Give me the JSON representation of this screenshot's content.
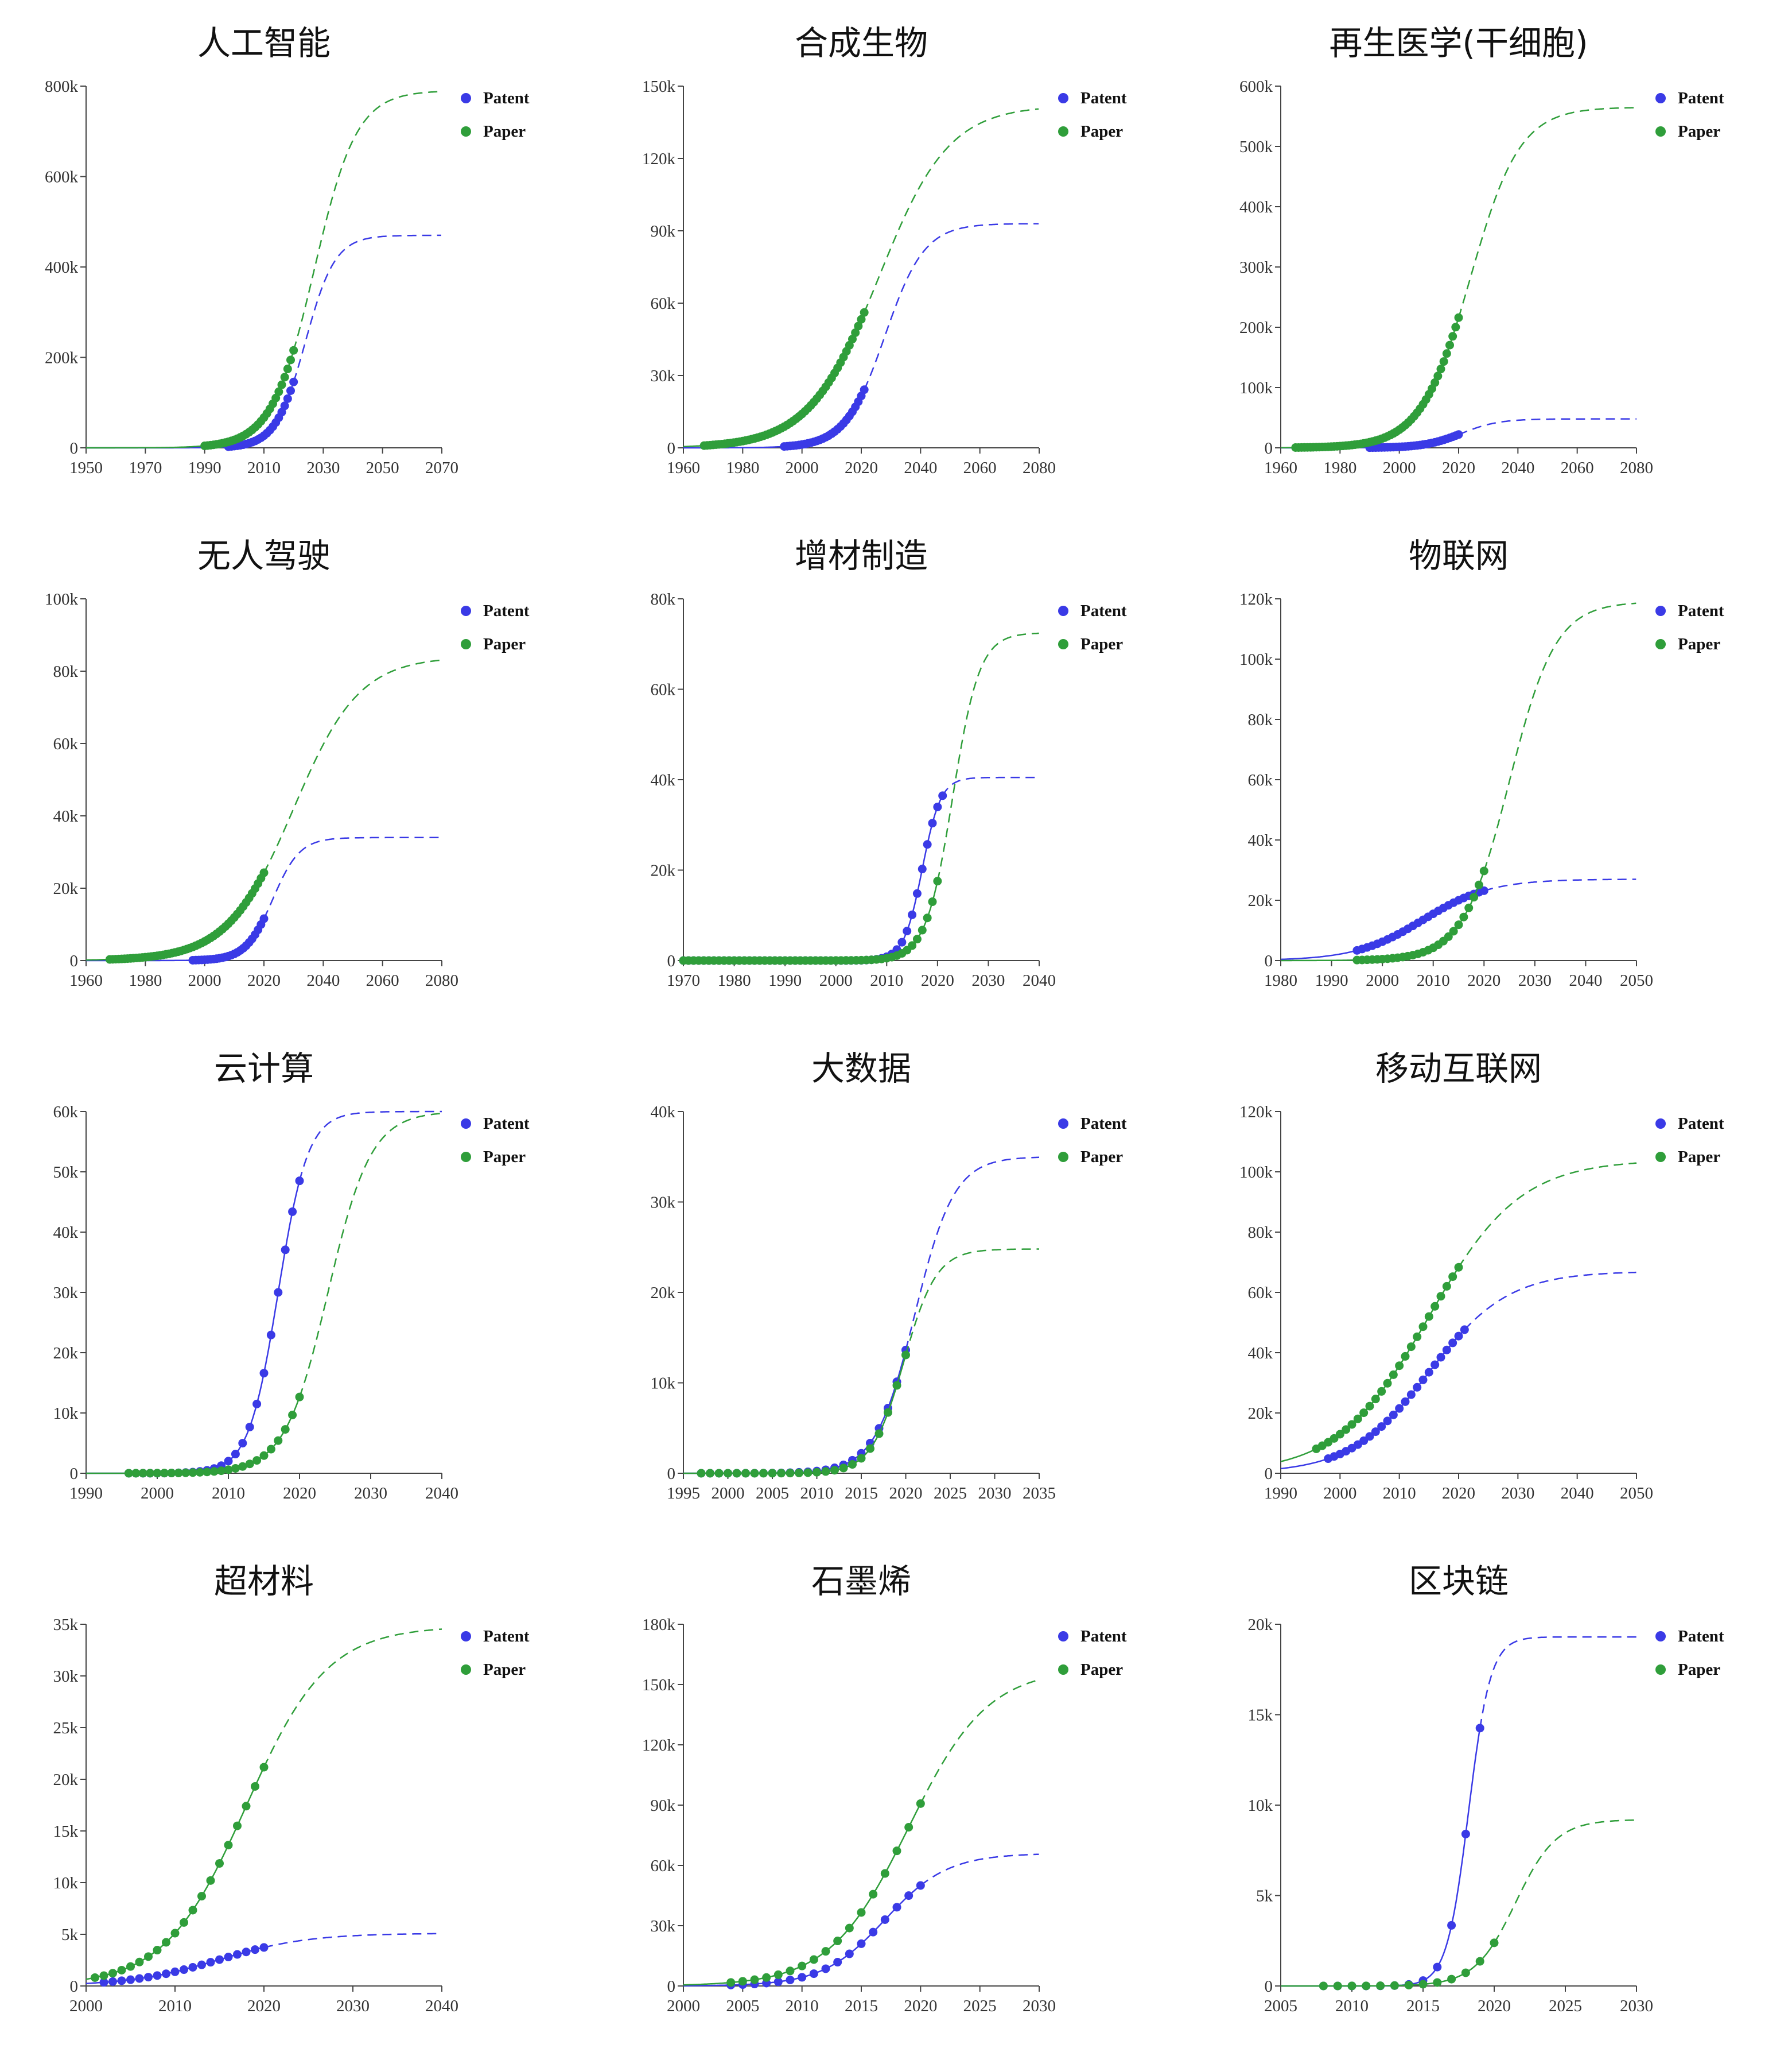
{
  "colors": {
    "patent": "#3a3ae6",
    "paper": "#2f9e3a"
  },
  "chart_data": [
    {
      "title": "人工智能",
      "type": "line",
      "xlim": [
        1950,
        2070
      ],
      "xticks": [
        1950,
        1970,
        1990,
        2010,
        2030,
        2050,
        2070
      ],
      "ylim": [
        0,
        800000
      ],
      "yticks": [
        0,
        200000,
        400000,
        600000,
        800000
      ],
      "ytick_labels": [
        "0",
        "200k",
        "400k",
        "600k",
        "800k"
      ],
      "series": [
        {
          "name": "Patent",
          "color": "#3a3ae6",
          "L": 470000,
          "k": 0.2,
          "x0": 2024,
          "obs_start": 1998,
          "obs_end": 2020
        },
        {
          "name": "Paper",
          "color": "#2f9e3a",
          "L": 790000,
          "k": 0.14,
          "x0": 2027,
          "obs_start": 1990,
          "obs_end": 2020
        }
      ]
    },
    {
      "title": "合成生物",
      "type": "line",
      "xlim": [
        1960,
        2080
      ],
      "xticks": [
        1960,
        1980,
        2000,
        2020,
        2040,
        2060,
        2080
      ],
      "ylim": [
        0,
        150000
      ],
      "yticks": [
        0,
        30000,
        60000,
        90000,
        120000,
        150000
      ],
      "ytick_labels": [
        "0",
        "30k",
        "60k",
        "90k",
        "120k",
        "150k"
      ],
      "series": [
        {
          "name": "Patent",
          "color": "#3a3ae6",
          "L": 93000,
          "k": 0.15,
          "x0": 2028,
          "obs_start": 1994,
          "obs_end": 2021
        },
        {
          "name": "Paper",
          "color": "#2f9e3a",
          "L": 142000,
          "k": 0.085,
          "x0": 2026,
          "obs_start": 1967,
          "obs_end": 2021
        }
      ]
    },
    {
      "title": "再生医学(干细胞)",
      "type": "line",
      "xlim": [
        1960,
        2080
      ],
      "xticks": [
        1960,
        1980,
        2000,
        2020,
        2040,
        2060,
        2080
      ],
      "ylim": [
        0,
        600000
      ],
      "yticks": [
        0,
        100000,
        200000,
        300000,
        400000,
        500000,
        600000
      ],
      "ytick_labels": [
        "0",
        "100k",
        "200k",
        "300k",
        "400k",
        "500k",
        "600k"
      ],
      "series": [
        {
          "name": "Patent",
          "color": "#3a3ae6",
          "L": 48000,
          "k": 0.16,
          "x0": 2021,
          "obs_start": 1990,
          "obs_end": 2020
        },
        {
          "name": "Paper",
          "color": "#2f9e3a",
          "L": 565000,
          "k": 0.12,
          "x0": 2024,
          "obs_start": 1965,
          "obs_end": 2020
        }
      ]
    },
    {
      "title": "无人驾驶",
      "type": "line",
      "xlim": [
        1960,
        2080
      ],
      "xticks": [
        1960,
        1980,
        2000,
        2020,
        2040,
        2060,
        2080
      ],
      "ylim": [
        0,
        100000
      ],
      "yticks": [
        0,
        20000,
        40000,
        60000,
        80000,
        100000
      ],
      "ytick_labels": [
        "0",
        "20k",
        "40k",
        "60k",
        "80k",
        "100k"
      ],
      "series": [
        {
          "name": "Patent",
          "color": "#3a3ae6",
          "L": 34000,
          "k": 0.22,
          "x0": 2023,
          "obs_start": 1996,
          "obs_end": 2020
        },
        {
          "name": "Paper",
          "color": "#2f9e3a",
          "L": 84000,
          "k": 0.09,
          "x0": 2030,
          "obs_start": 1968,
          "obs_end": 2020
        }
      ]
    },
    {
      "title": "增材制造",
      "type": "line",
      "xlim": [
        1970,
        2040
      ],
      "xticks": [
        1970,
        1980,
        1990,
        2000,
        2010,
        2020,
        2030,
        2040
      ],
      "ylim": [
        0,
        80000
      ],
      "yticks": [
        0,
        20000,
        40000,
        60000,
        80000
      ],
      "ytick_labels": [
        "0",
        "20k",
        "40k",
        "60k",
        "80k"
      ],
      "series": [
        {
          "name": "Patent",
          "color": "#3a3ae6",
          "L": 40500,
          "k": 0.55,
          "x0": 2017,
          "obs_start": 1970,
          "obs_end": 2021
        },
        {
          "name": "Paper",
          "color": "#2f9e3a",
          "L": 72500,
          "k": 0.38,
          "x0": 2023,
          "obs_start": 1970,
          "obs_end": 2020
        }
      ]
    },
    {
      "title": "物联网",
      "type": "line",
      "xlim": [
        1980,
        2050
      ],
      "xticks": [
        1980,
        1990,
        2000,
        2010,
        2020,
        2030,
        2040,
        2050
      ],
      "ylim": [
        0,
        120000
      ],
      "yticks": [
        0,
        20000,
        40000,
        60000,
        80000,
        100000,
        120000
      ],
      "ytick_labels": [
        "0",
        "20k",
        "40k",
        "60k",
        "80k",
        "100k",
        "120k"
      ],
      "series": [
        {
          "name": "Patent",
          "color": "#3a3ae6",
          "L": 27000,
          "k": 0.15,
          "x0": 2008,
          "obs_start": 1995,
          "obs_end": 2020
        },
        {
          "name": "Paper",
          "color": "#2f9e3a",
          "L": 119000,
          "k": 0.22,
          "x0": 2025,
          "obs_start": 1995,
          "obs_end": 2020
        }
      ]
    },
    {
      "title": "云计算",
      "type": "line",
      "xlim": [
        1990,
        2040
      ],
      "xticks": [
        1990,
        2000,
        2010,
        2020,
        2030,
        2040
      ],
      "ylim": [
        0,
        60000
      ],
      "yticks": [
        0,
        10000,
        20000,
        30000,
        40000,
        50000,
        60000
      ],
      "ytick_labels": [
        "0",
        "10k",
        "20k",
        "30k",
        "40k",
        "50k",
        "60k"
      ],
      "series": [
        {
          "name": "Patent",
          "color": "#3a3ae6",
          "L": 60000,
          "k": 0.48,
          "x0": 2017,
          "obs_start": 1996,
          "obs_end": 2020
        },
        {
          "name": "Paper",
          "color": "#2f9e3a",
          "L": 60000,
          "k": 0.33,
          "x0": 2024,
          "obs_start": 1996,
          "obs_end": 2020
        }
      ]
    },
    {
      "title": "大数据",
      "type": "line",
      "xlim": [
        1995,
        2035
      ],
      "xticks": [
        1995,
        2000,
        2005,
        2010,
        2015,
        2020,
        2025,
        2030,
        2035
      ],
      "ylim": [
        0,
        40000
      ],
      "yticks": [
        0,
        10000,
        20000,
        30000,
        40000
      ],
      "ytick_labels": [
        "0",
        "10k",
        "20k",
        "30k",
        "40k"
      ],
      "series": [
        {
          "name": "Patent",
          "color": "#3a3ae6",
          "L": 35000,
          "k": 0.45,
          "x0": 2021,
          "obs_start": 1997,
          "obs_end": 2020
        },
        {
          "name": "Paper",
          "color": "#2f9e3a",
          "L": 24800,
          "k": 0.55,
          "x0": 2019.8,
          "obs_start": 1997,
          "obs_end": 2020
        }
      ]
    },
    {
      "title": "移动互联网",
      "type": "line",
      "xlim": [
        1990,
        2050
      ],
      "xticks": [
        1990,
        2000,
        2010,
        2020,
        2030,
        2040,
        2050
      ],
      "ylim": [
        0,
        120000
      ],
      "yticks": [
        0,
        20000,
        40000,
        60000,
        80000,
        100000,
        120000
      ],
      "ytick_labels": [
        "0",
        "20k",
        "40k",
        "60k",
        "80k",
        "100k",
        "120k"
      ],
      "series": [
        {
          "name": "Patent",
          "color": "#3a3ae6",
          "L": 67000,
          "k": 0.15,
          "x0": 2015,
          "obs_start": 1998,
          "obs_end": 2021
        },
        {
          "name": "Paper",
          "color": "#2f9e3a",
          "L": 104000,
          "k": 0.13,
          "x0": 2015,
          "obs_start": 1996,
          "obs_end": 2020
        }
      ]
    },
    {
      "title": "超材料",
      "type": "line",
      "xlim": [
        2000,
        2040
      ],
      "xticks": [
        2000,
        2010,
        2020,
        2030,
        2040
      ],
      "ylim": [
        0,
        35000
      ],
      "yticks": [
        0,
        5000,
        10000,
        15000,
        20000,
        25000,
        30000,
        35000
      ],
      "ytick_labels": [
        "0",
        "5k",
        "10k",
        "15k",
        "20k",
        "25k",
        "30k",
        "35k"
      ],
      "series": [
        {
          "name": "Patent",
          "color": "#3a3ae6",
          "L": 5100,
          "k": 0.2,
          "x0": 2015,
          "obs_start": 2002,
          "obs_end": 2020
        },
        {
          "name": "Paper",
          "color": "#2f9e3a",
          "L": 34800,
          "k": 0.22,
          "x0": 2018,
          "obs_start": 2001,
          "obs_end": 2020
        }
      ]
    },
    {
      "title": "石墨烯",
      "type": "line",
      "xlim": [
        2000,
        2030
      ],
      "xticks": [
        2000,
        2005,
        2010,
        2015,
        2020,
        2025,
        2030
      ],
      "ylim": [
        0,
        180000
      ],
      "yticks": [
        0,
        30000,
        60000,
        90000,
        120000,
        150000,
        180000
      ],
      "ytick_labels": [
        "0",
        "30k",
        "60k",
        "90k",
        "120k",
        "150k",
        "180k"
      ],
      "series": [
        {
          "name": "Patent",
          "color": "#3a3ae6",
          "L": 66000,
          "k": 0.38,
          "x0": 2017,
          "obs_start": 2004,
          "obs_end": 2020
        },
        {
          "name": "Paper",
          "color": "#2f9e3a",
          "L": 158000,
          "k": 0.3,
          "x0": 2019,
          "obs_start": 2004,
          "obs_end": 2020
        }
      ]
    },
    {
      "title": "区块链",
      "type": "line",
      "xlim": [
        2005,
        2030
      ],
      "xticks": [
        2005,
        2010,
        2015,
        2020,
        2025,
        2030
      ],
      "ylim": [
        0,
        20000
      ],
      "yticks": [
        0,
        5000,
        10000,
        15000,
        20000
      ],
      "ytick_labels": [
        "0",
        "5k",
        "10k",
        "15k",
        "20k"
      ],
      "series": [
        {
          "name": "Patent",
          "color": "#3a3ae6",
          "L": 19300,
          "k": 1.3,
          "x0": 2018.2,
          "obs_start": 2008,
          "obs_end": 2019
        },
        {
          "name": "Paper",
          "color": "#2f9e3a",
          "L": 9200,
          "k": 0.7,
          "x0": 2021.5,
          "obs_start": 2008,
          "obs_end": 2020
        }
      ]
    }
  ]
}
